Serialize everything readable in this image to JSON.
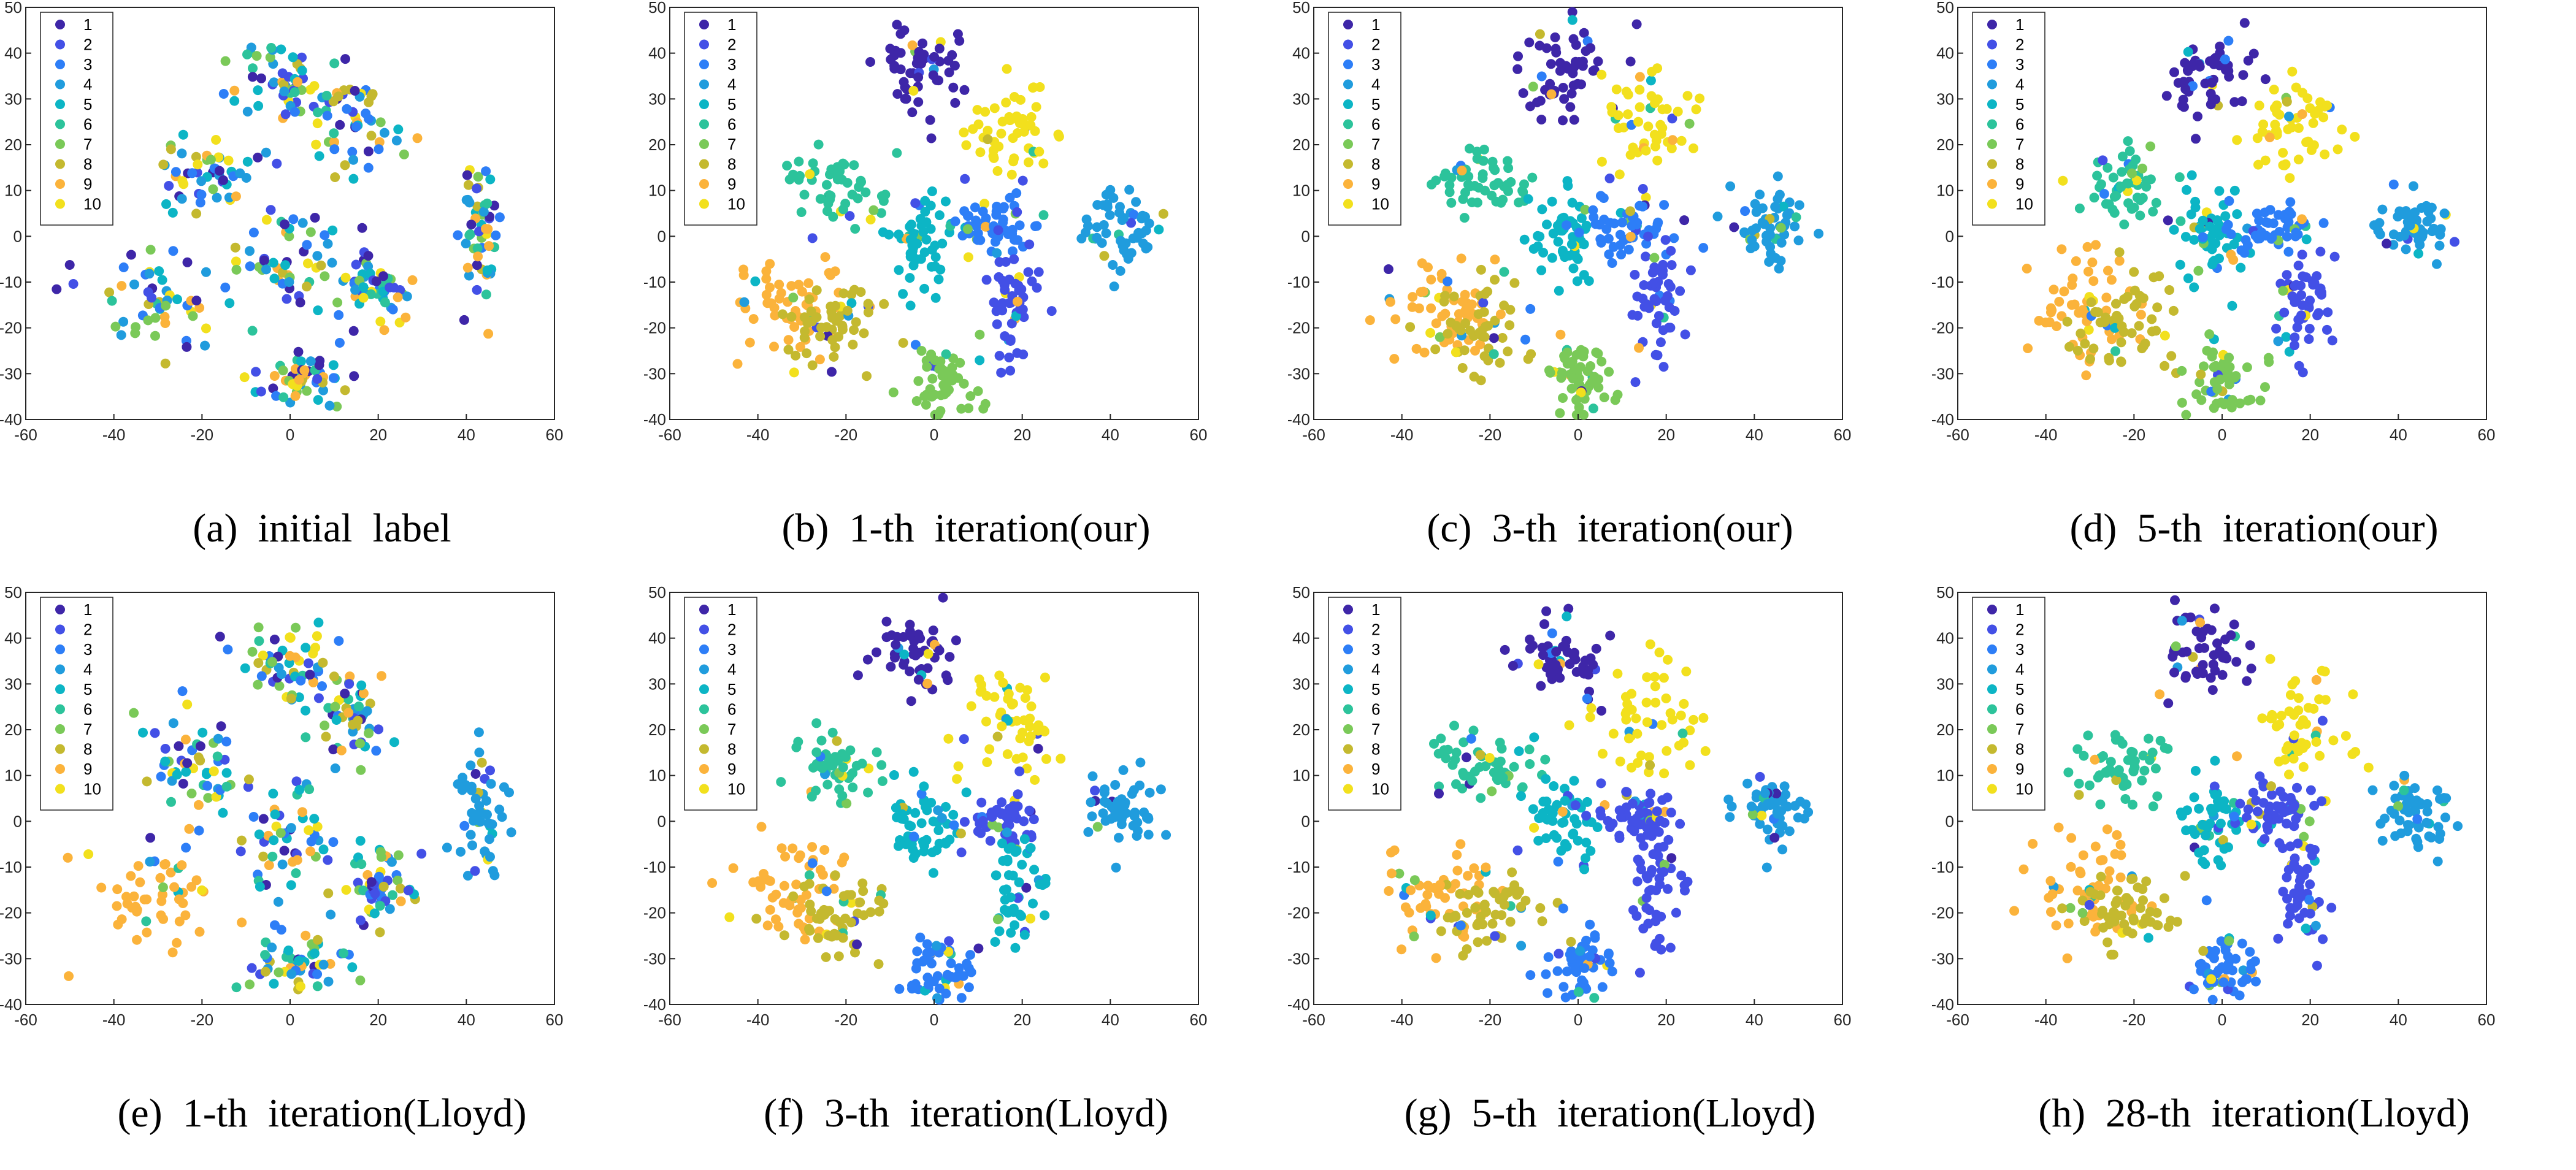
{
  "palette": [
    "#3e26a8",
    "#4350e6",
    "#2d7ef7",
    "#209cdd",
    "#0cb5c5",
    "#2cc39b",
    "#7ac958",
    "#c4b92f",
    "#fbb33b",
    "#f2e01d"
  ],
  "legend_labels": [
    "1",
    "2",
    "3",
    "4",
    "5",
    "6",
    "7",
    "8",
    "9",
    "10"
  ],
  "panels": [
    {
      "caption": "(a)  initial  label"
    },
    {
      "caption": "(b)  1-th  iteration(our)"
    },
    {
      "caption": "(c)  3-th  iteration(our)"
    },
    {
      "caption": "(d)  5-th  iteration(our)"
    },
    {
      "caption": "(e)  1-th  iteration(Lloyd)"
    },
    {
      "caption": "(f)  3-th  iteration(Lloyd)"
    },
    {
      "caption": "(g)  5-th  iteration(Lloyd)"
    },
    {
      "caption": "(h)  28-th  iteration(Lloyd)"
    }
  ],
  "chart_data": [
    {
      "type": "scatter",
      "title": "",
      "xlim": [
        -60,
        60
      ],
      "ylim": [
        -40,
        50
      ],
      "xticks": [
        -60,
        -40,
        -20,
        0,
        20,
        40,
        60
      ],
      "yticks": [
        -40,
        -30,
        -20,
        -10,
        0,
        10,
        20,
        30,
        40,
        50
      ],
      "legend": "top-left",
      "grid": false,
      "clusters": [
        {
          "center": [
            -30,
            -15
          ],
          "assigned": "mixed"
        },
        {
          "center": [
            -20,
            12
          ],
          "assigned": "mixed"
        },
        {
          "center": [
            -2,
            34
          ],
          "assigned": "mixed"
        },
        {
          "center": [
            14,
            24
          ],
          "assigned": "mixed"
        },
        {
          "center": [
            0,
            -4
          ],
          "assigned": "mixed"
        },
        {
          "center": [
            18,
            -12
          ],
          "assigned": "mixed"
        },
        {
          "center": [
            2,
            -31
          ],
          "assigned": "mixed"
        },
        {
          "center": [
            43,
            2
          ],
          "assigned": "mixed"
        }
      ]
    },
    {
      "type": "scatter",
      "title": "",
      "xlim": [
        -60,
        60
      ],
      "ylim": [
        -40,
        50
      ],
      "xticks": [
        -60,
        -40,
        -20,
        0,
        20,
        40,
        60
      ],
      "yticks": [
        -40,
        -30,
        -20,
        -10,
        0,
        10,
        20,
        30,
        40,
        50
      ],
      "legend": "top-left",
      "grid": false,
      "clusters": [
        {
          "center": [
            -30,
            -15
          ],
          "assigned": "9"
        },
        {
          "center": [
            -22,
            -20
          ],
          "assigned": "8"
        },
        {
          "center": [
            -22,
            12
          ],
          "assigned": "6"
        },
        {
          "center": [
            -4,
            36
          ],
          "assigned": "1"
        },
        {
          "center": [
            17,
            24
          ],
          "assigned": "10"
        },
        {
          "center": [
            -3,
            0
          ],
          "assigned": "5"
        },
        {
          "center": [
            12,
            2
          ],
          "assigned": "3"
        },
        {
          "center": [
            18,
            -14
          ],
          "assigned": "2"
        },
        {
          "center": [
            2,
            -32
          ],
          "assigned": "7"
        },
        {
          "center": [
            43,
            2
          ],
          "assigned": "4"
        }
      ]
    },
    {
      "type": "scatter",
      "title": "",
      "xlim": [
        -60,
        60
      ],
      "ylim": [
        -40,
        50
      ],
      "xticks": [
        -60,
        -40,
        -20,
        0,
        20,
        40,
        60
      ],
      "yticks": [
        -40,
        -30,
        -20,
        -10,
        0,
        10,
        20,
        30,
        40,
        50
      ],
      "legend": "top-left",
      "grid": false,
      "clusters": [
        {
          "center": [
            -30,
            -15
          ],
          "assigned": "9"
        },
        {
          "center": [
            -22,
            -20
          ],
          "assigned": "8"
        },
        {
          "center": [
            -22,
            12
          ],
          "assigned": "6"
        },
        {
          "center": [
            -4,
            36
          ],
          "assigned": "1"
        },
        {
          "center": [
            17,
            24
          ],
          "assigned": "10"
        },
        {
          "center": [
            -3,
            0
          ],
          "assigned": "5"
        },
        {
          "center": [
            12,
            2
          ],
          "assigned": "3"
        },
        {
          "center": [
            18,
            -14
          ],
          "assigned": "2"
        },
        {
          "center": [
            0,
            -32
          ],
          "assigned": "7"
        },
        {
          "center": [
            43,
            2
          ],
          "assigned": "4"
        }
      ]
    },
    {
      "type": "scatter",
      "title": "",
      "xlim": [
        -60,
        60
      ],
      "ylim": [
        -40,
        50
      ],
      "xticks": [
        -60,
        -40,
        -20,
        0,
        20,
        40,
        60
      ],
      "yticks": [
        -40,
        -30,
        -20,
        -10,
        0,
        10,
        20,
        30,
        40,
        50
      ],
      "legend": "top-left",
      "grid": false,
      "clusters": [
        {
          "center": [
            -30,
            -15
          ],
          "assigned": "9"
        },
        {
          "center": [
            -22,
            -20
          ],
          "assigned": "8"
        },
        {
          "center": [
            -22,
            12
          ],
          "assigned": "6"
        },
        {
          "center": [
            -4,
            36
          ],
          "assigned": "1"
        },
        {
          "center": [
            17,
            24
          ],
          "assigned": "10"
        },
        {
          "center": [
            -3,
            0
          ],
          "assigned": "5"
        },
        {
          "center": [
            12,
            2
          ],
          "assigned": "3"
        },
        {
          "center": [
            18,
            -14
          ],
          "assigned": "2"
        },
        {
          "center": [
            0,
            -32
          ],
          "assigned": "7"
        },
        {
          "center": [
            43,
            2
          ],
          "assigned": "4"
        }
      ]
    },
    {
      "type": "scatter",
      "title": "",
      "xlim": [
        -60,
        60
      ],
      "ylim": [
        -40,
        50
      ],
      "xticks": [
        -60,
        -40,
        -20,
        0,
        20,
        40,
        60
      ],
      "yticks": [
        -40,
        -30,
        -20,
        -10,
        0,
        10,
        20,
        30,
        40,
        50
      ],
      "legend": "top-left",
      "grid": false,
      "clusters": [
        {
          "center": [
            -30,
            -15
          ],
          "assigned": "9"
        },
        {
          "center": [
            -22,
            12
          ],
          "assigned": "mixed"
        },
        {
          "center": [
            -2,
            34
          ],
          "assigned": "mixed"
        },
        {
          "center": [
            14,
            24
          ],
          "assigned": "mixed"
        },
        {
          "center": [
            0,
            -4
          ],
          "assigned": "mixed"
        },
        {
          "center": [
            20,
            -14
          ],
          "assigned": "mixed"
        },
        {
          "center": [
            2,
            -31
          ],
          "assigned": "mixed"
        },
        {
          "center": [
            43,
            2
          ],
          "assigned": "4"
        }
      ]
    },
    {
      "type": "scatter",
      "title": "",
      "xlim": [
        -60,
        60
      ],
      "ylim": [
        -40,
        50
      ],
      "xticks": [
        -60,
        -40,
        -20,
        0,
        20,
        40,
        60
      ],
      "yticks": [
        -40,
        -30,
        -20,
        -10,
        0,
        10,
        20,
        30,
        40,
        50
      ],
      "legend": "top-left",
      "grid": false,
      "clusters": [
        {
          "center": [
            -30,
            -15
          ],
          "assigned": "9"
        },
        {
          "center": [
            -22,
            -20
          ],
          "assigned": "8"
        },
        {
          "center": [
            -22,
            12
          ],
          "assigned": "6"
        },
        {
          "center": [
            -4,
            36
          ],
          "assigned": "1"
        },
        {
          "center": [
            17,
            22
          ],
          "assigned": "10"
        },
        {
          "center": [
            -3,
            0
          ],
          "assigned": "5"
        },
        {
          "center": [
            14,
            0
          ],
          "assigned": "2"
        },
        {
          "center": [
            18,
            -14
          ],
          "assigned": "5"
        },
        {
          "center": [
            2,
            -32
          ],
          "assigned": "3"
        },
        {
          "center": [
            43,
            2
          ],
          "assigned": "4"
        }
      ]
    },
    {
      "type": "scatter",
      "title": "",
      "xlim": [
        -60,
        60
      ],
      "ylim": [
        -40,
        50
      ],
      "xticks": [
        -60,
        -40,
        -20,
        0,
        20,
        40,
        60
      ],
      "yticks": [
        -40,
        -30,
        -20,
        -10,
        0,
        10,
        20,
        30,
        40,
        50
      ],
      "legend": "top-left",
      "grid": false,
      "clusters": [
        {
          "center": [
            -30,
            -15
          ],
          "assigned": "9"
        },
        {
          "center": [
            -22,
            -20
          ],
          "assigned": "8"
        },
        {
          "center": [
            -22,
            12
          ],
          "assigned": "6"
        },
        {
          "center": [
            -4,
            36
          ],
          "assigned": "1"
        },
        {
          "center": [
            17,
            22
          ],
          "assigned": "10"
        },
        {
          "center": [
            -3,
            0
          ],
          "assigned": "5"
        },
        {
          "center": [
            12,
            2
          ],
          "assigned": "2"
        },
        {
          "center": [
            18,
            -14
          ],
          "assigned": "2"
        },
        {
          "center": [
            0,
            -32
          ],
          "assigned": "3"
        },
        {
          "center": [
            43,
            2
          ],
          "assigned": "4"
        }
      ]
    },
    {
      "type": "scatter",
      "title": "",
      "xlim": [
        -60,
        60
      ],
      "ylim": [
        -40,
        50
      ],
      "xticks": [
        -60,
        -40,
        -20,
        0,
        20,
        40,
        60
      ],
      "yticks": [
        -40,
        -30,
        -20,
        -10,
        0,
        10,
        20,
        30,
        40,
        50
      ],
      "legend": "top-left",
      "grid": false,
      "clusters": [
        {
          "center": [
            -30,
            -15
          ],
          "assigned": "9"
        },
        {
          "center": [
            -22,
            -20
          ],
          "assigned": "8"
        },
        {
          "center": [
            -22,
            12
          ],
          "assigned": "6"
        },
        {
          "center": [
            -4,
            36
          ],
          "assigned": "1"
        },
        {
          "center": [
            17,
            22
          ],
          "assigned": "10"
        },
        {
          "center": [
            -3,
            0
          ],
          "assigned": "5"
        },
        {
          "center": [
            12,
            2
          ],
          "assigned": "2"
        },
        {
          "center": [
            18,
            -14
          ],
          "assigned": "2"
        },
        {
          "center": [
            0,
            -32
          ],
          "assigned": "3"
        },
        {
          "center": [
            43,
            2
          ],
          "assigned": "4"
        }
      ]
    }
  ]
}
